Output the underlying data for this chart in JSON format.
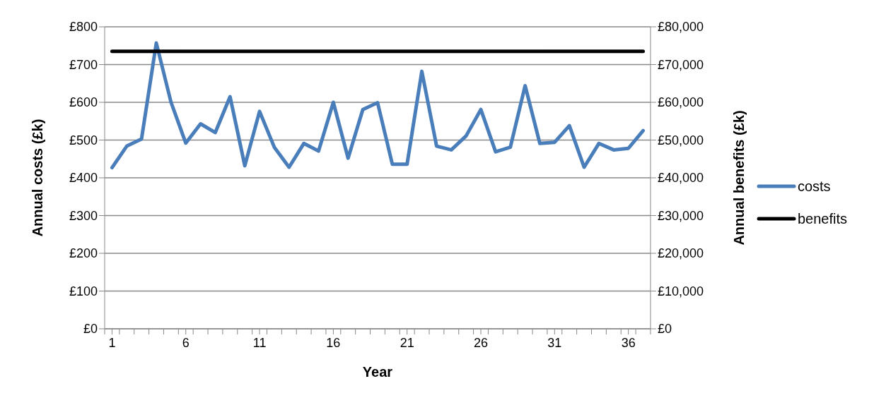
{
  "chart_data": {
    "type": "line",
    "xlabel": "Year",
    "ylabel": "Annual costs (£k)",
    "y2label": "Annual benefits (£k)",
    "x": [
      1,
      2,
      3,
      4,
      5,
      6,
      7,
      8,
      9,
      10,
      11,
      12,
      13,
      14,
      15,
      16,
      17,
      18,
      19,
      20,
      21,
      22,
      23,
      24,
      25,
      26,
      27,
      28,
      29,
      30,
      31,
      32,
      33,
      34,
      35,
      36,
      37
    ],
    "xlim": [
      0.5,
      37.5
    ],
    "xticks": [
      1,
      6,
      11,
      16,
      21,
      26,
      31,
      36,
      {
        "value": 0.5,
        "label": null
      },
      {
        "value": 1.5,
        "label": null
      },
      {
        "value": 2.5,
        "label": null
      },
      {
        "value": 3.5,
        "label": null
      },
      {
        "value": 4.5,
        "label": null
      },
      {
        "value": 5.5,
        "label": null
      },
      {
        "value": 6.5,
        "label": null
      },
      {
        "value": 7.5,
        "label": null
      },
      {
        "value": 8.5,
        "label": null
      },
      {
        "value": 9.5,
        "label": null
      },
      {
        "value": 10.5,
        "label": null
      },
      {
        "value": 11.5,
        "label": null
      },
      {
        "value": 12.5,
        "label": null
      },
      {
        "value": 13.5,
        "label": null
      },
      {
        "value": 14.5,
        "label": null
      },
      {
        "value": 15.5,
        "label": null
      },
      {
        "value": 16.5,
        "label": null
      },
      {
        "value": 17.5,
        "label": null
      },
      {
        "value": 18.5,
        "label": null
      },
      {
        "value": 19.5,
        "label": null
      },
      {
        "value": 20.5,
        "label": null
      },
      {
        "value": 21.5,
        "label": null
      },
      {
        "value": 22.5,
        "label": null
      },
      {
        "value": 23.5,
        "label": null
      },
      {
        "value": 24.5,
        "label": null
      },
      {
        "value": 25.5,
        "label": null
      },
      {
        "value": 26.5,
        "label": null
      },
      {
        "value": 27.5,
        "label": null
      },
      {
        "value": 28.5,
        "label": null
      },
      {
        "value": 29.5,
        "label": null
      },
      {
        "value": 30.5,
        "label": null
      },
      {
        "value": 31.5,
        "label": null
      },
      {
        "value": 32.5,
        "label": null
      },
      {
        "value": 33.5,
        "label": null
      },
      {
        "value": 34.5,
        "label": null
      },
      {
        "value": 35.5,
        "label": null
      },
      {
        "value": 36.5,
        "label": null
      },
      {
        "value": 37.5,
        "label": null
      }
    ],
    "series": [
      {
        "name": "costs",
        "color": "#4a7ebb",
        "values": [
          427,
          484,
          503,
          757,
          600,
          492,
          543,
          520,
          615,
          432,
          576,
          481,
          428,
          491,
          471,
          600,
          452,
          581,
          599,
          436,
          436,
          682,
          484,
          474,
          511,
          581,
          469,
          481,
          644,
          491,
          494,
          538,
          428,
          491,
          474,
          478,
          525
        ]
      },
      {
        "name": "benefits",
        "color": "#000000",
        "axis": "y2",
        "values": [
          73500,
          73500,
          73500,
          73500,
          73500,
          73500,
          73500,
          73500,
          73500,
          73500,
          73500,
          73500,
          73500,
          73500,
          73500,
          73500,
          73500,
          73500,
          73500,
          73500,
          73500,
          73500,
          73500,
          73500,
          73500,
          73500,
          73500,
          73500,
          73500,
          73500,
          73500,
          73500,
          73500,
          73500,
          73500,
          73500,
          73500
        ]
      }
    ],
    "ylim": [
      0,
      800
    ],
    "yticks": [
      {
        "value": 0,
        "label": "£0"
      },
      {
        "value": 100,
        "label": "£100"
      },
      {
        "value": 200,
        "label": "£200"
      },
      {
        "value": 300,
        "label": "£300"
      },
      {
        "value": 400,
        "label": "£400"
      },
      {
        "value": 500,
        "label": "£500"
      },
      {
        "value": 600,
        "label": "£600"
      },
      {
        "value": 700,
        "label": "£700"
      },
      {
        "value": 800,
        "label": "£800"
      }
    ],
    "y2lim": [
      0,
      80000
    ],
    "y2ticks": [
      {
        "value": 0,
        "label": "£0"
      },
      {
        "value": 10000,
        "label": "£10,000"
      },
      {
        "value": 20000,
        "label": "£20,000"
      },
      {
        "value": 30000,
        "label": "£30,000"
      },
      {
        "value": 40000,
        "label": "£40,000"
      },
      {
        "value": 50000,
        "label": "£50,000"
      },
      {
        "value": 60000,
        "label": "£60,000"
      },
      {
        "value": 70000,
        "label": "£70,000"
      },
      {
        "value": 80000,
        "label": "£80,000"
      }
    ],
    "grid": "y",
    "legend": "right",
    "marker": "none",
    "line_style": "solid"
  }
}
